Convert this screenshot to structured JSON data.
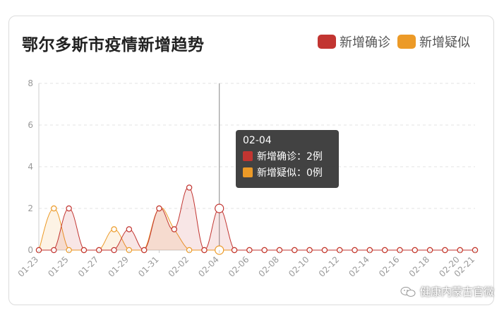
{
  "title": "鄂尔多斯市疫情新增趋势",
  "legend": [
    {
      "label": "新增确诊",
      "color": "#c23531"
    },
    {
      "label": "新增疑似",
      "color": "#ec9a27"
    }
  ],
  "tooltip": {
    "title": "02-04",
    "rows": [
      {
        "label": "新增确诊：2例",
        "color": "#c23531"
      },
      {
        "label": "新增疑似：0例",
        "color": "#ec9a27"
      }
    ]
  },
  "watermark": "健康内蒙古官微",
  "chart_data": {
    "type": "area",
    "categories": [
      "01-23",
      "01-24",
      "01-25",
      "01-26",
      "01-27",
      "01-28",
      "01-29",
      "01-30",
      "01-31",
      "02-01",
      "02-02",
      "02-03",
      "02-04",
      "02-05",
      "02-06",
      "02-07",
      "02-08",
      "02-09",
      "02-10",
      "02-11",
      "02-12",
      "02-13",
      "02-14",
      "02-15",
      "02-16",
      "02-17",
      "02-18",
      "02-19",
      "02-20",
      "02-21"
    ],
    "x_tick_labels": [
      "01-23",
      "01-25",
      "01-27",
      "01-29",
      "01-31",
      "02-02",
      "02-04",
      "02-06",
      "02-08",
      "02-10",
      "02-12",
      "02-14",
      "02-16",
      "02-18",
      "02-20",
      "02-21"
    ],
    "series": [
      {
        "name": "新增确诊",
        "color": "#c23531",
        "values": [
          0,
          0,
          2,
          0,
          0,
          0,
          1,
          0,
          2,
          1,
          3,
          0,
          2,
          0,
          0,
          0,
          0,
          0,
          0,
          0,
          0,
          0,
          0,
          0,
          0,
          0,
          0,
          0,
          0,
          0
        ]
      },
      {
        "name": "新增疑似",
        "color": "#ec9a27",
        "values": [
          0,
          2,
          0,
          0,
          0,
          1,
          0,
          0,
          2,
          1,
          0,
          0,
          0,
          0,
          0,
          0,
          0,
          0,
          0,
          0,
          0,
          0,
          0,
          0,
          0,
          0,
          0,
          0,
          0,
          0
        ]
      }
    ],
    "y_ticks": [
      0,
      2,
      4,
      6,
      8
    ],
    "ylim": [
      0,
      8
    ],
    "highlight": "02-04",
    "grid": true,
    "legend_position": "top-right"
  }
}
